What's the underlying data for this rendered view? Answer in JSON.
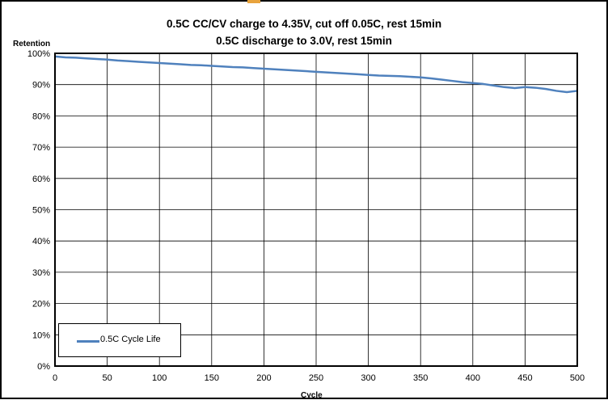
{
  "chart_data": {
    "type": "line",
    "title": "0.5C CC/CV charge to 4.35V, cut off 0.05C, rest 15min",
    "subtitle": "0.5C discharge to 3.0V, rest 15min",
    "xlabel": "Cycle",
    "ylabel": "Retention",
    "xlim": [
      0,
      500
    ],
    "ylim": [
      0,
      100
    ],
    "x_ticks": [
      "0",
      "50",
      "100",
      "150",
      "200",
      "250",
      "300",
      "350",
      "400",
      "450",
      "500"
    ],
    "y_ticks": [
      "0%",
      "10%",
      "20%",
      "30%",
      "40%",
      "50%",
      "60%",
      "70%",
      "80%",
      "90%",
      "100%"
    ],
    "grid": true,
    "legend_position": "bottom-left",
    "series": [
      {
        "name": "0.5C Cycle Life",
        "color": "#4f81bd",
        "x": [
          0,
          10,
          20,
          30,
          40,
          50,
          60,
          70,
          80,
          90,
          100,
          110,
          120,
          130,
          140,
          150,
          160,
          170,
          180,
          190,
          200,
          210,
          220,
          230,
          240,
          250,
          260,
          270,
          280,
          290,
          300,
          310,
          320,
          330,
          340,
          350,
          360,
          370,
          380,
          390,
          400,
          410,
          420,
          430,
          440,
          450,
          460,
          470,
          480,
          490,
          500
        ],
        "y": [
          99.0,
          98.7,
          98.6,
          98.4,
          98.2,
          98.0,
          97.7,
          97.5,
          97.3,
          97.1,
          96.9,
          96.7,
          96.5,
          96.3,
          96.2,
          96.0,
          95.8,
          95.6,
          95.5,
          95.3,
          95.1,
          94.9,
          94.7,
          94.5,
          94.3,
          94.1,
          93.9,
          93.7,
          93.5,
          93.3,
          93.1,
          92.9,
          92.8,
          92.7,
          92.5,
          92.3,
          92.0,
          91.6,
          91.2,
          90.8,
          90.5,
          90.2,
          89.7,
          89.2,
          88.9,
          89.2,
          89.0,
          88.6,
          88.0,
          87.6,
          88.0
        ]
      }
    ]
  }
}
